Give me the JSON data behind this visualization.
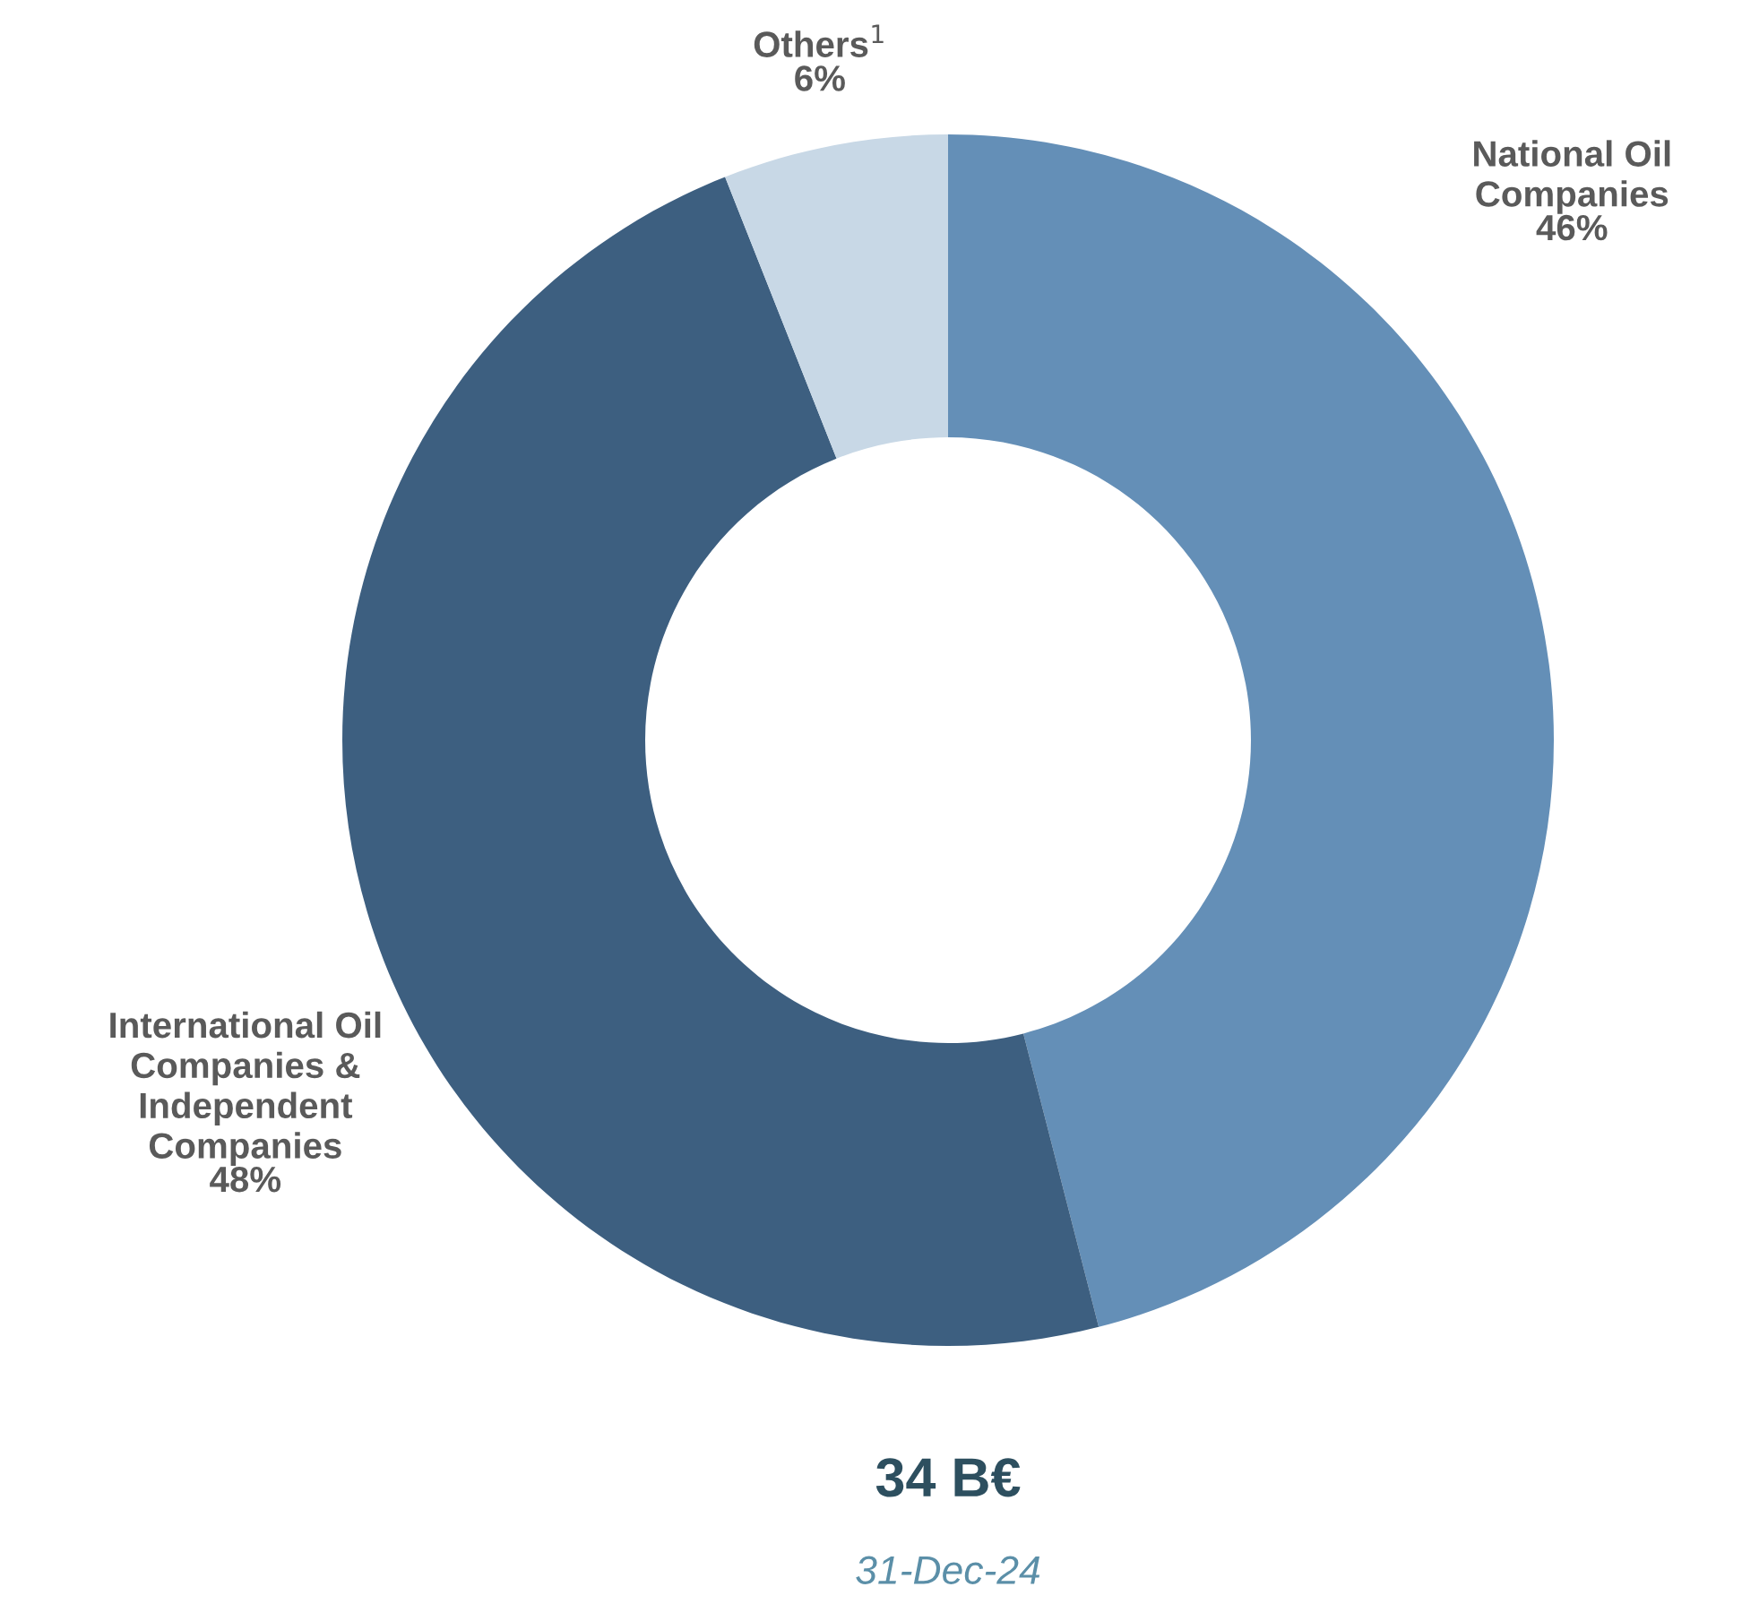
{
  "chart_data": {
    "type": "donut",
    "categories": [
      "National Oil\nCompanies",
      "International Oil\nCompanies &\nIndependent\nCompanies",
      "Others$^{1}$"
    ],
    "values": [
      46,
      48,
      6
    ],
    "value_labels": [
      "46%",
      "48%",
      "6%"
    ],
    "colors": [
      "#648fb7",
      "#3d5f80",
      "#c8d8e6"
    ],
    "annotations": [
      "34 B€",
      "31-Dec-24"
    ]
  }
}
